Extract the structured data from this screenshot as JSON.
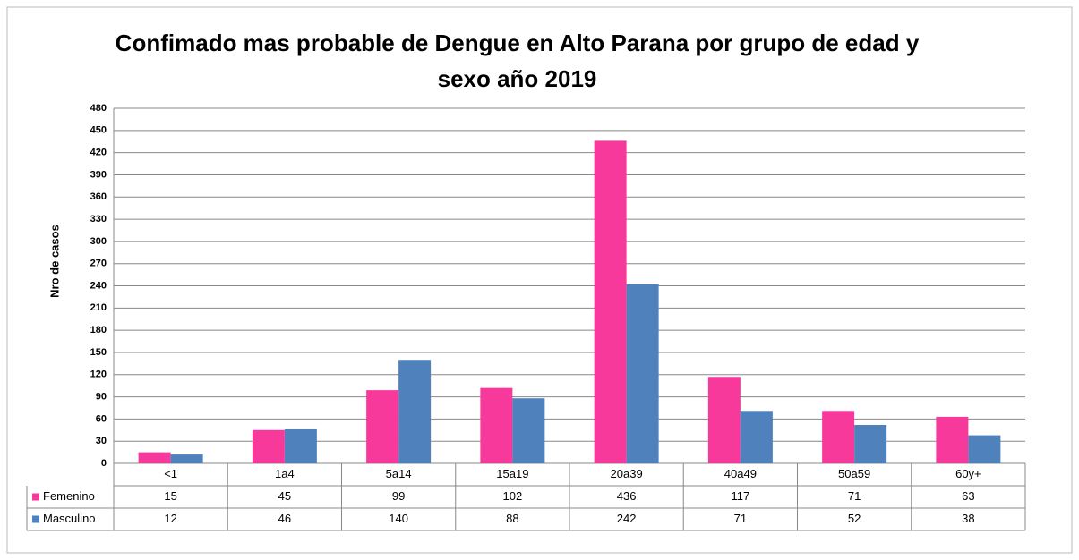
{
  "chart_data": {
    "type": "bar",
    "title": "Confimado  mas probable de Dengue en Alto Parana por grupo de edad y sexo año 2019",
    "y_label": "Nro de casos",
    "categories": [
      "<1",
      "1a4",
      "5a14",
      "15a19",
      "20a39",
      "40a49",
      "50a59",
      "60y+"
    ],
    "series": [
      {
        "name": "Femenino",
        "color": "#f7399b",
        "values": [
          15,
          45,
          99,
          102,
          436,
          117,
          71,
          63
        ]
      },
      {
        "name": "Masculino",
        "color": "#4f81bd",
        "values": [
          12,
          46,
          140,
          88,
          242,
          71,
          52,
          38
        ]
      }
    ],
    "ylim": [
      0,
      480
    ],
    "yticks": [
      0,
      30,
      60,
      90,
      120,
      150,
      180,
      210,
      240,
      270,
      300,
      330,
      360,
      390,
      420,
      450,
      480
    ],
    "grid": true
  }
}
